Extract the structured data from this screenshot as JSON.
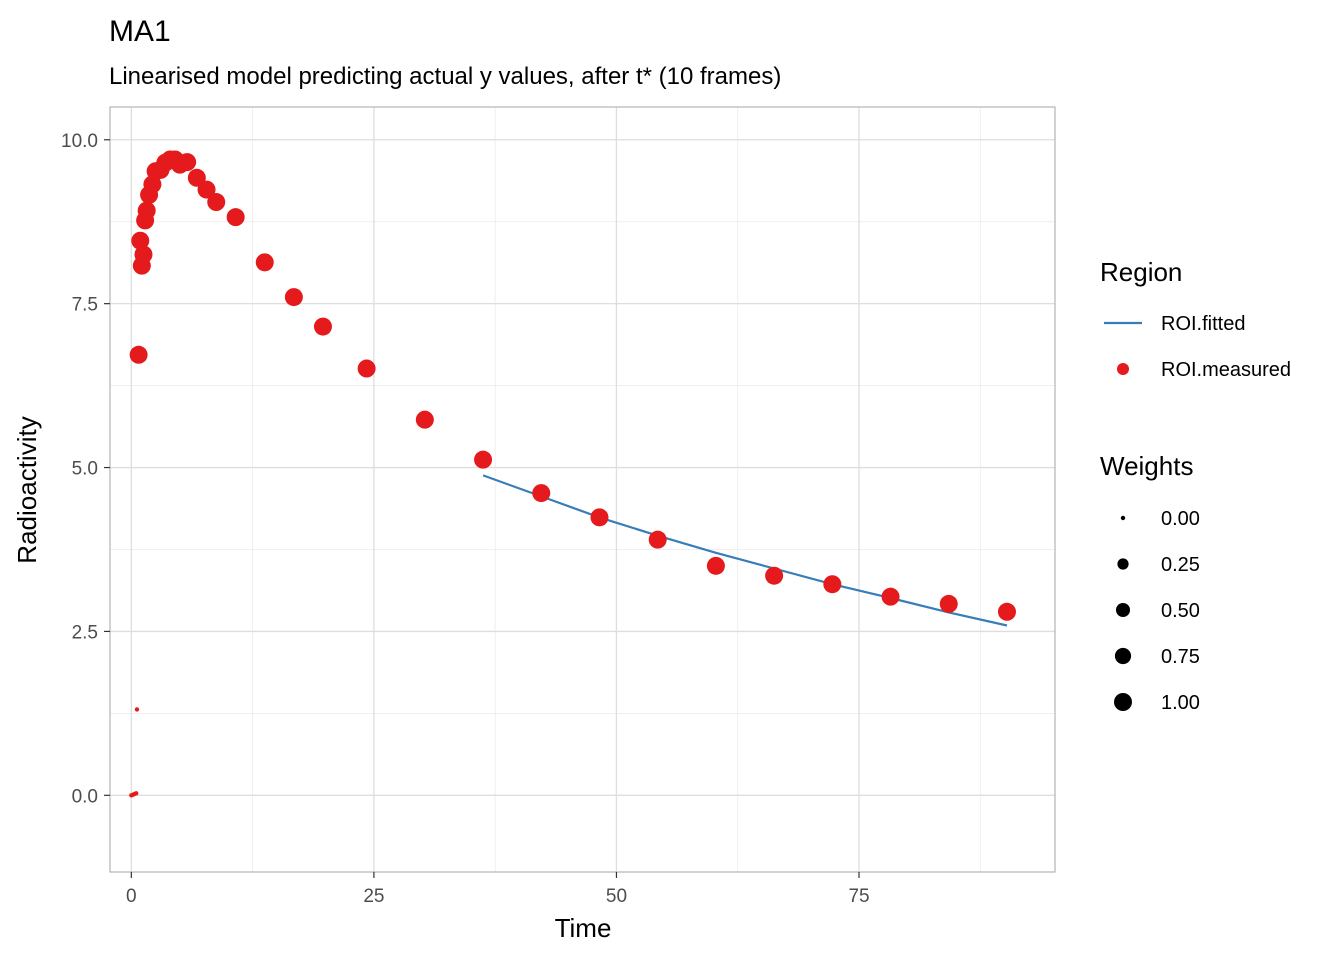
{
  "chart_data": {
    "type": "scatter",
    "title": "MA1",
    "subtitle": "Linearised model predicting actual y values, after t* (10 frames)",
    "xlabel": "Time",
    "ylabel": "Radioactivity",
    "xlim": [
      -2.2,
      95.2
    ],
    "ylim": [
      -1.17,
      10.5
    ],
    "x_ticks": [
      0,
      25,
      50,
      75
    ],
    "x_tick_labels": [
      "0",
      "25",
      "50",
      "75"
    ],
    "x_minor": [
      12.5,
      37.5,
      62.5,
      87.5
    ],
    "y_ticks": [
      0,
      2.5,
      5,
      7.5,
      10
    ],
    "y_tick_labels": [
      "0.0",
      "2.5",
      "5.0",
      "7.5",
      "10.0"
    ],
    "y_minor": [
      1.25,
      3.75,
      6.25,
      8.75
    ],
    "grid": true,
    "colors": {
      "measured": "#E41A1C",
      "fitted": "#377EB8",
      "panel_border": "#b3b3b3",
      "grid": "#ebebeb"
    },
    "series": [
      {
        "name": "ROI.measured",
        "kind": "points",
        "points": [
          {
            "x": 0.0,
            "y": 0.0,
            "w": 0
          },
          {
            "x": 0.17,
            "y": 0.01,
            "w": 0
          },
          {
            "x": 0.33,
            "y": 0.02,
            "w": 0
          },
          {
            "x": 0.5,
            "y": 0.03,
            "w": 0
          },
          {
            "x": 0.58,
            "y": 1.31,
            "w": 0
          },
          {
            "x": 0.75,
            "y": 6.72,
            "w": 1
          },
          {
            "x": 0.92,
            "y": 8.46,
            "w": 1
          },
          {
            "x": 1.08,
            "y": 8.08,
            "w": 1
          },
          {
            "x": 1.25,
            "y": 8.25,
            "w": 1
          },
          {
            "x": 1.42,
            "y": 8.77,
            "w": 1
          },
          {
            "x": 1.58,
            "y": 8.92,
            "w": 1
          },
          {
            "x": 1.83,
            "y": 9.16,
            "w": 1
          },
          {
            "x": 2.17,
            "y": 9.32,
            "w": 1
          },
          {
            "x": 2.5,
            "y": 9.52,
            "w": 1
          },
          {
            "x": 3.0,
            "y": 9.54,
            "w": 1
          },
          {
            "x": 3.5,
            "y": 9.65,
            "w": 1
          },
          {
            "x": 4.0,
            "y": 9.7,
            "w": 1
          },
          {
            "x": 4.5,
            "y": 9.7,
            "w": 1
          },
          {
            "x": 5.0,
            "y": 9.62,
            "w": 1
          },
          {
            "x": 5.75,
            "y": 9.66,
            "w": 1
          },
          {
            "x": 6.75,
            "y": 9.42,
            "w": 1
          },
          {
            "x": 7.75,
            "y": 9.24,
            "w": 1
          },
          {
            "x": 8.75,
            "y": 9.05,
            "w": 1
          },
          {
            "x": 10.75,
            "y": 8.82,
            "w": 1
          },
          {
            "x": 13.75,
            "y": 8.13,
            "w": 1
          },
          {
            "x": 16.75,
            "y": 7.6,
            "w": 1
          },
          {
            "x": 19.75,
            "y": 7.15,
            "w": 1
          },
          {
            "x": 24.25,
            "y": 6.51,
            "w": 1
          },
          {
            "x": 30.25,
            "y": 5.73,
            "w": 1
          },
          {
            "x": 36.25,
            "y": 5.12,
            "w": 1
          },
          {
            "x": 42.25,
            "y": 4.61,
            "w": 1
          },
          {
            "x": 48.25,
            "y": 4.24,
            "w": 1
          },
          {
            "x": 54.25,
            "y": 3.9,
            "w": 1
          },
          {
            "x": 60.25,
            "y": 3.5,
            "w": 1
          },
          {
            "x": 66.25,
            "y": 3.35,
            "w": 1
          },
          {
            "x": 72.25,
            "y": 3.22,
            "w": 1
          },
          {
            "x": 78.25,
            "y": 3.03,
            "w": 1
          },
          {
            "x": 84.25,
            "y": 2.92,
            "w": 1
          },
          {
            "x": 90.25,
            "y": 2.8,
            "w": 1
          }
        ]
      },
      {
        "name": "ROI.fitted",
        "kind": "line",
        "points": [
          {
            "x": 36.25,
            "y": 4.88
          },
          {
            "x": 42.25,
            "y": 4.56
          },
          {
            "x": 48.25,
            "y": 4.24
          },
          {
            "x": 54.25,
            "y": 3.96
          },
          {
            "x": 60.25,
            "y": 3.7
          },
          {
            "x": 66.25,
            "y": 3.46
          },
          {
            "x": 72.25,
            "y": 3.22
          },
          {
            "x": 78.25,
            "y": 3.01
          },
          {
            "x": 84.25,
            "y": 2.79
          },
          {
            "x": 90.25,
            "y": 2.59
          }
        ]
      }
    ],
    "legend": {
      "placement": "right",
      "region_title": "Region",
      "region_items": [
        {
          "label": "ROI.fitted",
          "kind": "line"
        },
        {
          "label": "ROI.measured",
          "kind": "point"
        }
      ],
      "weights_title": "Weights",
      "weights_items": [
        {
          "label": "0.00",
          "w": 0
        },
        {
          "label": "0.25",
          "w": 0.25
        },
        {
          "label": "0.50",
          "w": 0.5
        },
        {
          "label": "0.75",
          "w": 0.75
        },
        {
          "label": "1.00",
          "w": 1
        }
      ]
    }
  }
}
